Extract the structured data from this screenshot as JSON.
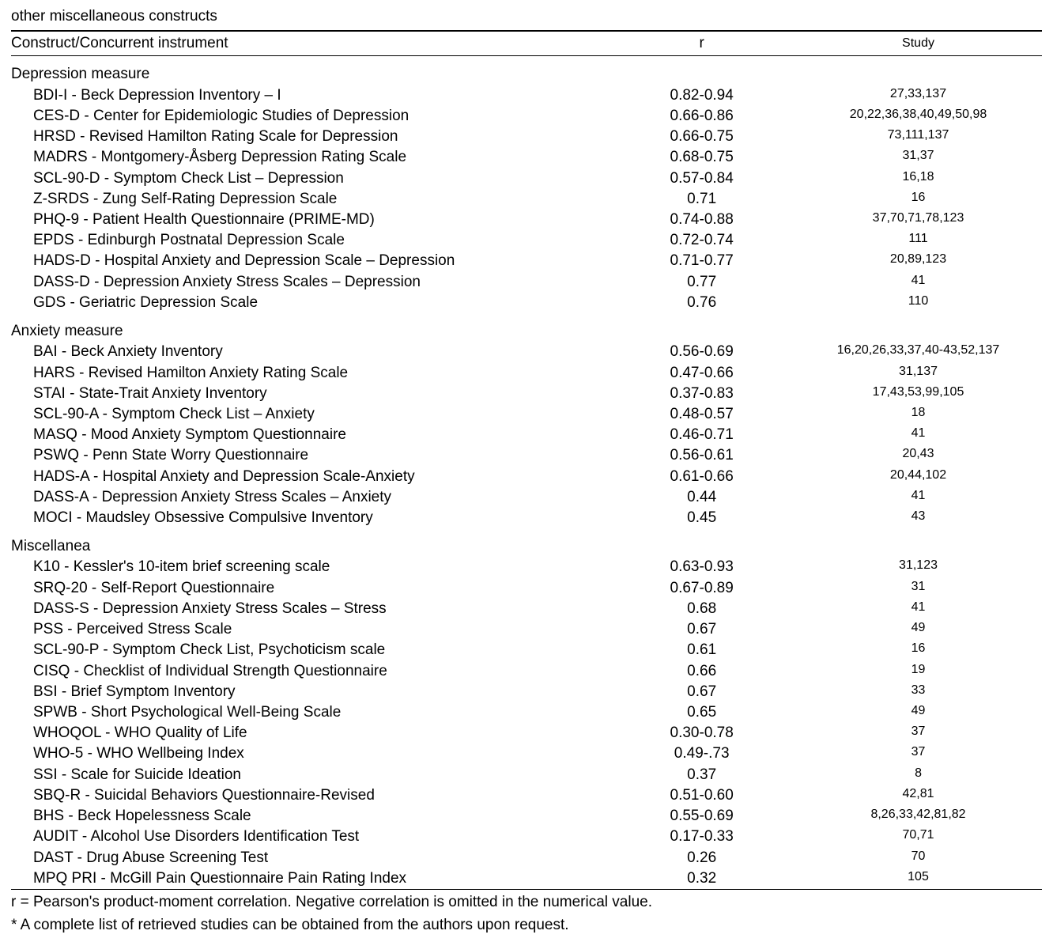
{
  "caption_tail": "other miscellaneous constructs",
  "headers": {
    "construct": "Construct/Concurrent instrument",
    "r": "r",
    "study": "Study"
  },
  "sections": [
    {
      "label": "Depression measure",
      "items": [
        {
          "name": "BDI-I - Beck Depression Inventory – I",
          "r": "0.82-0.94",
          "study": "27,33,137"
        },
        {
          "name": "CES-D - Center for Epidemiologic Studies of Depression",
          "r": "0.66-0.86",
          "study": "20,22,36,38,40,49,50,98"
        },
        {
          "name": "HRSD - Revised Hamilton Rating Scale for Depression",
          "r": "0.66-0.75",
          "study": "73,111,137"
        },
        {
          "name": "MADRS - Montgomery-Åsberg Depression Rating Scale",
          "r": "0.68-0.75",
          "study": "31,37"
        },
        {
          "name": "SCL-90-D - Symptom Check List – Depression",
          "r": "0.57-0.84",
          "study": "16,18"
        },
        {
          "name": "Z-SRDS - Zung Self-Rating Depression Scale",
          "r": "0.71",
          "study": "16"
        },
        {
          "name": "PHQ-9 - Patient Health Questionnaire (PRIME-MD)",
          "r": "0.74-0.88",
          "study": "37,70,71,78,123"
        },
        {
          "name": "EPDS - Edinburgh Postnatal Depression Scale",
          "r": "0.72-0.74",
          "study": "111"
        },
        {
          "name": "HADS-D - Hospital Anxiety and Depression Scale – Depression",
          "r": "0.71-0.77",
          "study": "20,89,123"
        },
        {
          "name": "DASS-D - Depression Anxiety Stress Scales – Depression",
          "r": "0.77",
          "study": "41"
        },
        {
          "name": "GDS - Geriatric Depression Scale",
          "r": "0.76",
          "study": "110"
        }
      ]
    },
    {
      "label": "Anxiety measure",
      "items": [
        {
          "name": "BAI - Beck Anxiety Inventory",
          "r": "0.56-0.69",
          "study": "16,20,26,33,37,40-43,52,137"
        },
        {
          "name": "HARS - Revised Hamilton Anxiety Rating Scale",
          "r": "0.47-0.66",
          "study": "31,137"
        },
        {
          "name": "STAI - State-Trait Anxiety Inventory",
          "r": "0.37-0.83",
          "study": "17,43,53,99,105"
        },
        {
          "name": "SCL-90-A - Symptom Check List – Anxiety",
          "r": "0.48-0.57",
          "study": "18"
        },
        {
          "name": "MASQ - Mood Anxiety Symptom Questionnaire",
          "r": "0.46-0.71",
          "study": "41"
        },
        {
          "name": "PSWQ - Penn State Worry Questionnaire",
          "r": "0.56-0.61",
          "study": "20,43"
        },
        {
          "name": "HADS-A - Hospital Anxiety and Depression Scale-Anxiety",
          "r": "0.61-0.66",
          "study": "20,44,102"
        },
        {
          "name": "DASS-A - Depression Anxiety Stress Scales – Anxiety",
          "r": "0.44",
          "study": "41"
        },
        {
          "name": "MOCI - Maudsley Obsessive Compulsive Inventory",
          "r": "0.45",
          "study": "43"
        }
      ]
    },
    {
      "label": "Miscellanea",
      "items": [
        {
          "name": "K10 - Kessler's 10-item brief screening scale",
          "r": "0.63-0.93",
          "study": "31,123"
        },
        {
          "name": "SRQ-20 - Self-Report Questionnaire",
          "r": "0.67-0.89",
          "study": "31"
        },
        {
          "name": "DASS-S - Depression Anxiety Stress Scales – Stress",
          "r": "0.68",
          "study": "41"
        },
        {
          "name": "PSS - Perceived Stress Scale",
          "r": "0.67",
          "study": "49"
        },
        {
          "name": "SCL-90-P - Symptom Check List, Psychoticism scale",
          "r": "0.61",
          "study": "16"
        },
        {
          "name": "CISQ - Checklist of Individual Strength Questionnaire",
          "r": "0.66",
          "study": "19"
        },
        {
          "name": "BSI - Brief Symptom Inventory",
          "r": "0.67",
          "study": "33"
        },
        {
          "name": "SPWB - Short Psychological Well-Being Scale",
          "r": "0.65",
          "study": "49"
        },
        {
          "name": "WHOQOL - WHO Quality of Life",
          "r": "0.30-0.78",
          "study": "37"
        },
        {
          "name": "WHO-5 - WHO Wellbeing Index",
          "r": "0.49-.73",
          "study": "37"
        },
        {
          "name": "SSI - Scale for Suicide Ideation",
          "r": "0.37",
          "study": "8"
        },
        {
          "name": "SBQ-R - Suicidal Behaviors Questionnaire-Revised",
          "r": "0.51-0.60",
          "study": "42,81"
        },
        {
          "name": "BHS - Beck Hopelessness Scale",
          "r": "0.55-0.69",
          "study": "8,26,33,42,81,82"
        },
        {
          "name": "AUDIT - Alcohol Use Disorders Identification Test",
          "r": "0.17-0.33",
          "study": "70,71"
        },
        {
          "name": "DAST - Drug Abuse Screening Test",
          "r": "0.26",
          "study": "70"
        },
        {
          "name": "MPQ PRI - McGill Pain Questionnaire Pain Rating Index",
          "r": "0.32",
          "study": "105"
        }
      ]
    }
  ],
  "footnotes": [
    "r = Pearson's product-moment correlation. Negative correlation is omitted in the numerical value.",
    "* A complete list of retrieved studies can be obtained from the authors upon request."
  ]
}
